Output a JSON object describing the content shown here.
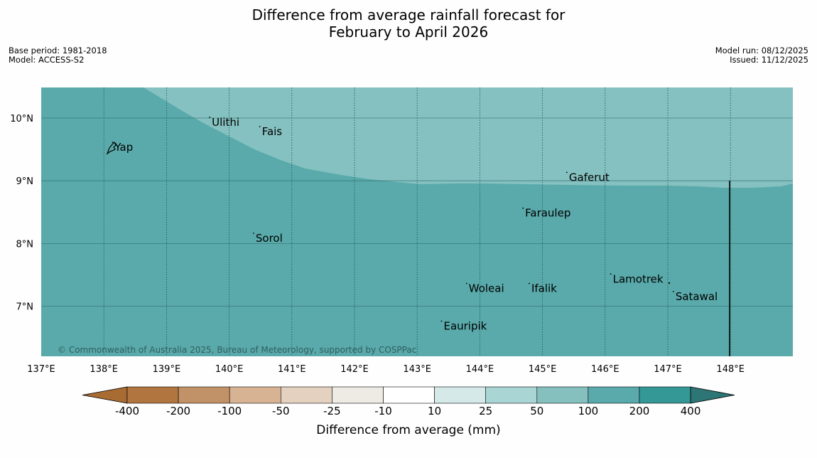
{
  "title": {
    "line1": "Difference from average rainfall forecast for",
    "line2": "February to April 2026"
  },
  "meta_left": {
    "base_period": "Base period: 1981-2018",
    "model": "Model: ACCESS-S2"
  },
  "meta_right": {
    "model_run": "Model run: 08/12/2025",
    "issued": "Issued: 11/12/2025"
  },
  "map": {
    "lon_range": [
      137,
      149
    ],
    "lat_range": [
      6.2,
      10.5
    ],
    "x_ticks": [
      "137°E",
      "138°E",
      "139°E",
      "140°E",
      "141°E",
      "142°E",
      "143°E",
      "144°E",
      "145°E",
      "146°E",
      "147°E",
      "148°E"
    ],
    "y_ticks": [
      "10°N",
      "9°N",
      "8°N",
      "7°N"
    ],
    "colors": {
      "band_200_400": "#5aaaab",
      "band_100_200": "#85c1c0"
    },
    "places": [
      {
        "name": "Yap",
        "lon": 138.15,
        "lat": 9.5
      },
      {
        "name": "Ulithi",
        "lon": 139.7,
        "lat": 9.9
      },
      {
        "name": "Fais",
        "lon": 140.5,
        "lat": 9.75
      },
      {
        "name": "Gaferut",
        "lon": 145.4,
        "lat": 9.02
      },
      {
        "name": "Faraulep",
        "lon": 144.7,
        "lat": 8.45
      },
      {
        "name": "Sorol",
        "lon": 140.4,
        "lat": 8.05
      },
      {
        "name": "Lamotrek",
        "lon": 146.1,
        "lat": 7.4
      },
      {
        "name": "Woleai",
        "lon": 143.8,
        "lat": 7.25
      },
      {
        "name": "Ifalik",
        "lon": 144.8,
        "lat": 7.25
      },
      {
        "name": "Satawal",
        "lon": 147.1,
        "lat": 7.12
      },
      {
        "name": "Eauripik",
        "lon": 143.4,
        "lat": 6.65
      }
    ],
    "copyright": "© Commonwealth of Australia 2025, Bureau of Meteorology, supported by COSPPac"
  },
  "colorbar": {
    "label": "Difference from average (mm)",
    "ticks": [
      "-400",
      "-200",
      "-100",
      "-50",
      "-25",
      "-10",
      "10",
      "25",
      "50",
      "100",
      "200",
      "400"
    ],
    "colors": [
      "#a86b32",
      "#b1763f",
      "#c19268",
      "#d7b394",
      "#e5d1c0",
      "#eeebe5",
      "#ffffff",
      "#d4e9e8",
      "#a9d5d4",
      "#85c0bf",
      "#5aaaab",
      "#349897",
      "#2e7575"
    ]
  }
}
